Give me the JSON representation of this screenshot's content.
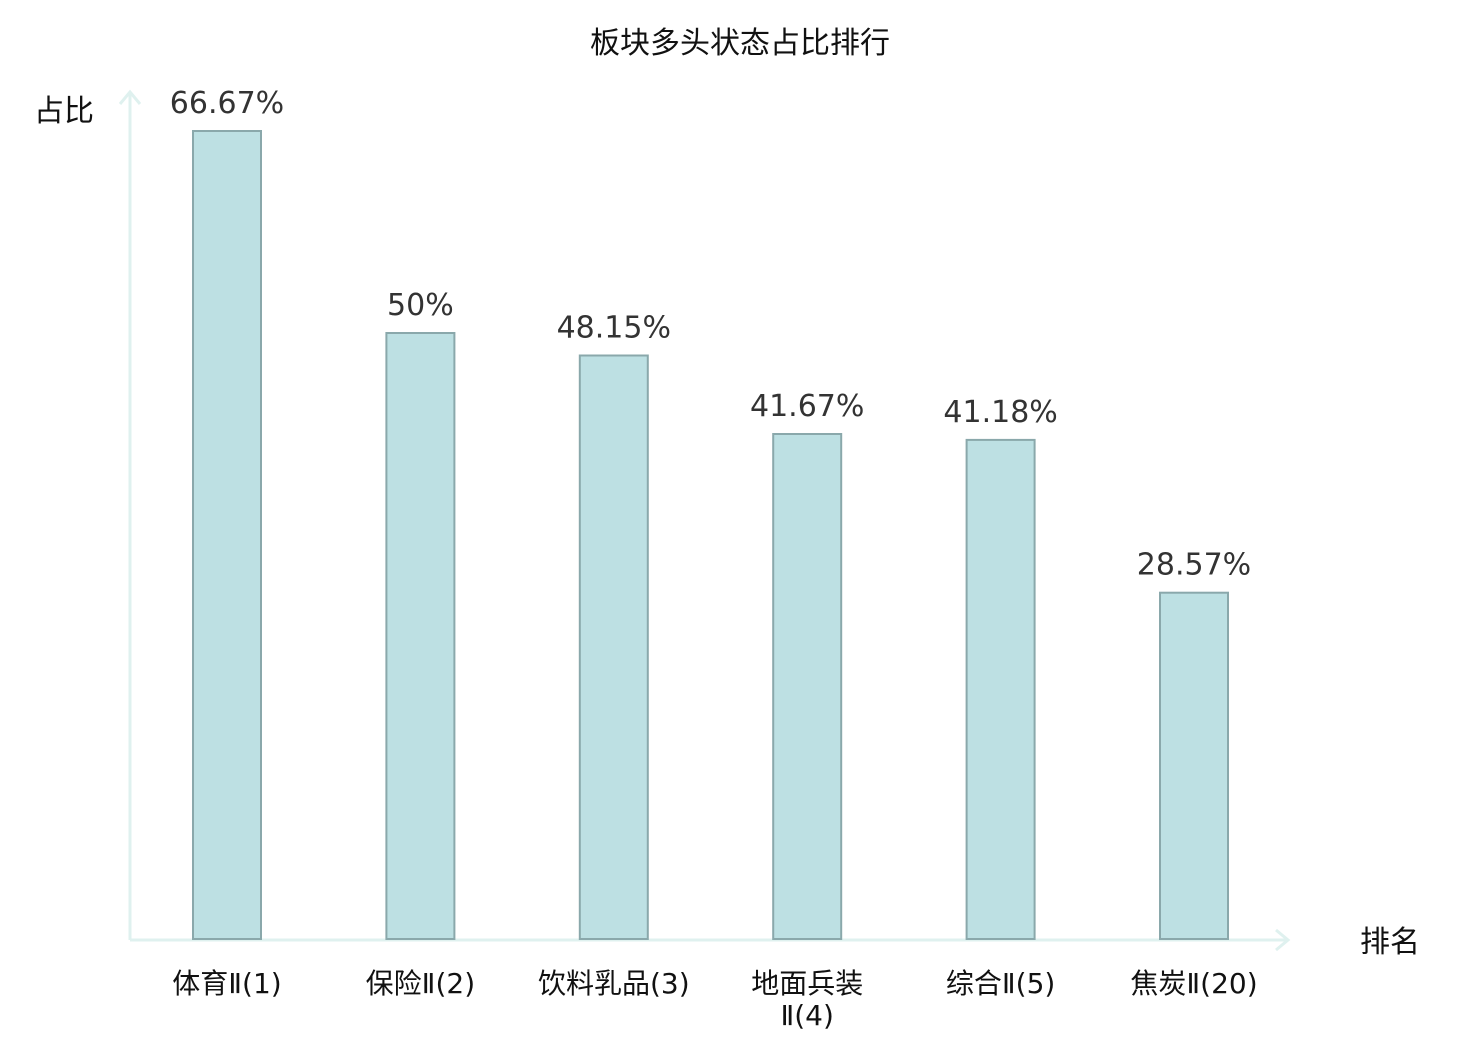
{
  "chart_data": {
    "type": "bar",
    "title": "板块多头状态占比排行",
    "ylabel": "占比",
    "xlabel": "排名",
    "ylim": [
      0,
      70
    ],
    "grid": false,
    "categories": [
      "体育Ⅱ(1)",
      "保险Ⅱ(2)",
      "饮料乳品(3)",
      "地面兵装Ⅱ(4)",
      "综合Ⅱ(5)",
      "焦炭Ⅱ(20)"
    ],
    "category_lines": [
      [
        "体育Ⅱ(1)"
      ],
      [
        "保险Ⅱ(2)"
      ],
      [
        "饮料乳品(3)"
      ],
      [
        "地面兵装",
        "Ⅱ(4)"
      ],
      [
        "综合Ⅱ(5)"
      ],
      [
        "焦炭Ⅱ(20)"
      ]
    ],
    "values": [
      66.67,
      50,
      48.15,
      41.67,
      41.18,
      28.57
    ],
    "value_labels": [
      "66.67%",
      "50%",
      "48.15%",
      "41.67%",
      "41.18%",
      "28.57%"
    ],
    "highlight_index": 5
  },
  "colors": {
    "bar_fill": "#bde0e3",
    "bar_stroke": "#8aa8ab",
    "axis": "#dff1ef",
    "value_text": "#333333",
    "label_text": "#111111",
    "highlight_text": "#d9141b"
  }
}
